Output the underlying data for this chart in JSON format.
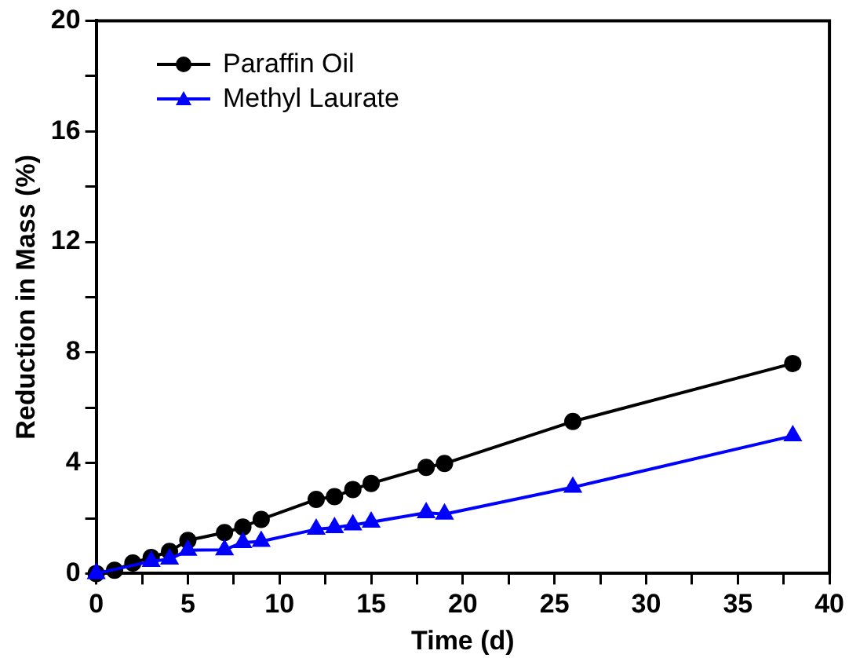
{
  "chart_data": {
    "type": "line",
    "xlabel": "Time (d)",
    "ylabel": "Reduction in Mass (%)",
    "xlim": [
      0,
      40
    ],
    "xticks": [
      0,
      {
        "value": 2.5,
        "label": null
      },
      5,
      {
        "value": 7.5,
        "label": null
      },
      10,
      {
        "value": 12.5,
        "label": null
      },
      15,
      {
        "value": 17.5,
        "label": null
      },
      20,
      {
        "value": 22.5,
        "label": null
      },
      25,
      {
        "value": 27.5,
        "label": null
      },
      30,
      {
        "value": 32.5,
        "label": null
      },
      35,
      {
        "value": 37.5,
        "label": null
      },
      40
    ],
    "ylim": [
      0,
      20
    ],
    "yticks": [
      0,
      {
        "value": 2,
        "label": null
      },
      4,
      {
        "value": 6,
        "label": null
      },
      8,
      {
        "value": 10,
        "label": null
      },
      12,
      {
        "value": 14,
        "label": null
      },
      16,
      {
        "value": 18,
        "label": null
      },
      20
    ],
    "grid": false,
    "legend": "top left",
    "line_style": "solid",
    "series": [
      {
        "name": "Paraffin Oil",
        "color": "#000000",
        "marker": "circle",
        "x": [
          0,
          1,
          2,
          3,
          4,
          5,
          7,
          8,
          9,
          12,
          13,
          14,
          15,
          18,
          19,
          26,
          38
        ],
        "values": [
          0,
          0.12,
          0.38,
          0.58,
          0.8,
          1.2,
          1.48,
          1.68,
          1.96,
          2.68,
          2.78,
          3.04,
          3.26,
          3.84,
          3.98,
          5.5,
          7.6
        ]
      },
      {
        "name": "Methyl Laurate",
        "color": "#0000ff",
        "marker": "triangle",
        "x": [
          0,
          3,
          4,
          5,
          7,
          8,
          9,
          12,
          13,
          14,
          15,
          18,
          19,
          26,
          38
        ],
        "values": [
          0,
          0.44,
          0.52,
          0.84,
          0.86,
          1.12,
          1.16,
          1.6,
          1.66,
          1.76,
          1.86,
          2.2,
          2.15,
          3.12,
          4.98
        ]
      }
    ]
  }
}
